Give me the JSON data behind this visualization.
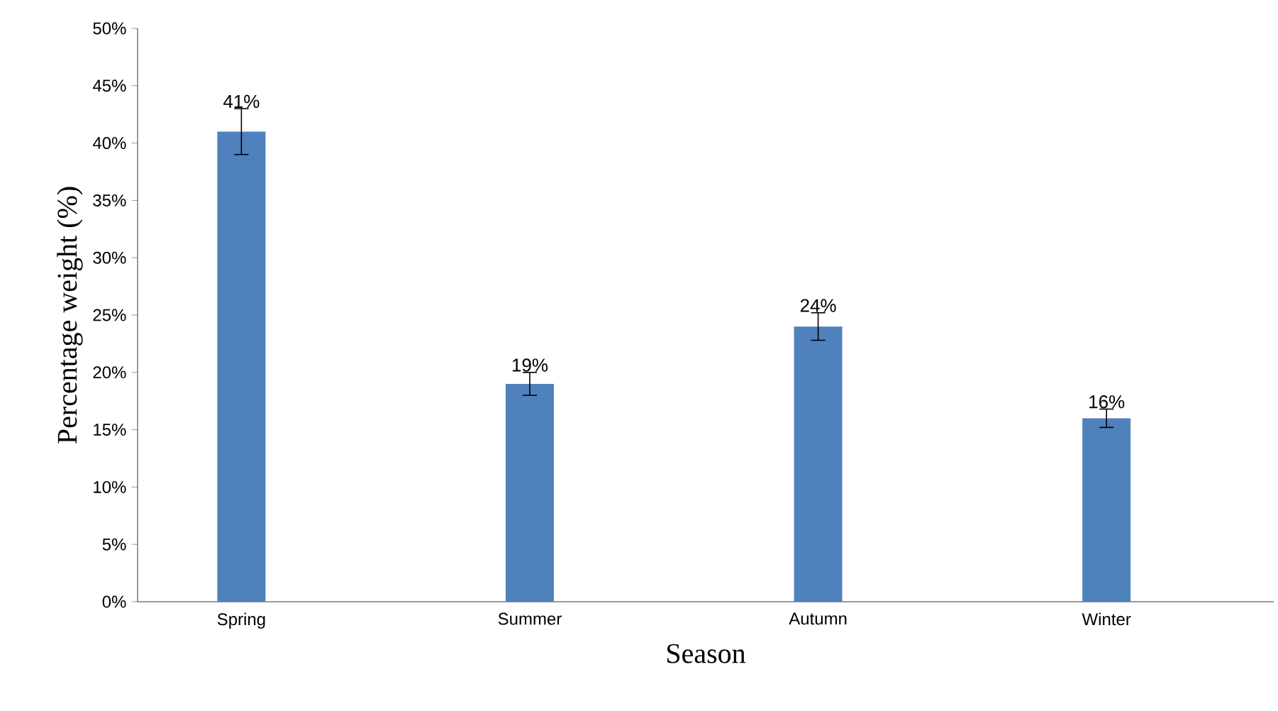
{
  "chart_data": {
    "type": "bar",
    "xlabel": "Season",
    "ylabel": "Percentage weight (%)",
    "categories": [
      "Spring",
      "Summer",
      "Autumn",
      "Winter"
    ],
    "values": [
      41,
      19,
      24,
      16
    ],
    "color": "#4f81bd",
    "errors": [
      2,
      1,
      1.2,
      0.8
    ],
    "value_labels": [
      "41%",
      "19%",
      "24%",
      "16%"
    ],
    "ylim": [
      0,
      50
    ],
    "yticks": [
      {
        "value": 0,
        "label": "0%"
      },
      {
        "value": 5,
        "label": "5%"
      },
      {
        "value": 10,
        "label": "10%"
      },
      {
        "value": 15,
        "label": "15%"
      },
      {
        "value": 20,
        "label": "20%"
      },
      {
        "value": 25,
        "label": "25%"
      },
      {
        "value": 30,
        "label": "30%"
      },
      {
        "value": 35,
        "label": "35%"
      },
      {
        "value": 40,
        "label": "40%"
      },
      {
        "value": 45,
        "label": "45%"
      },
      {
        "value": 50,
        "label": "50%"
      }
    ],
    "grid": false
  }
}
